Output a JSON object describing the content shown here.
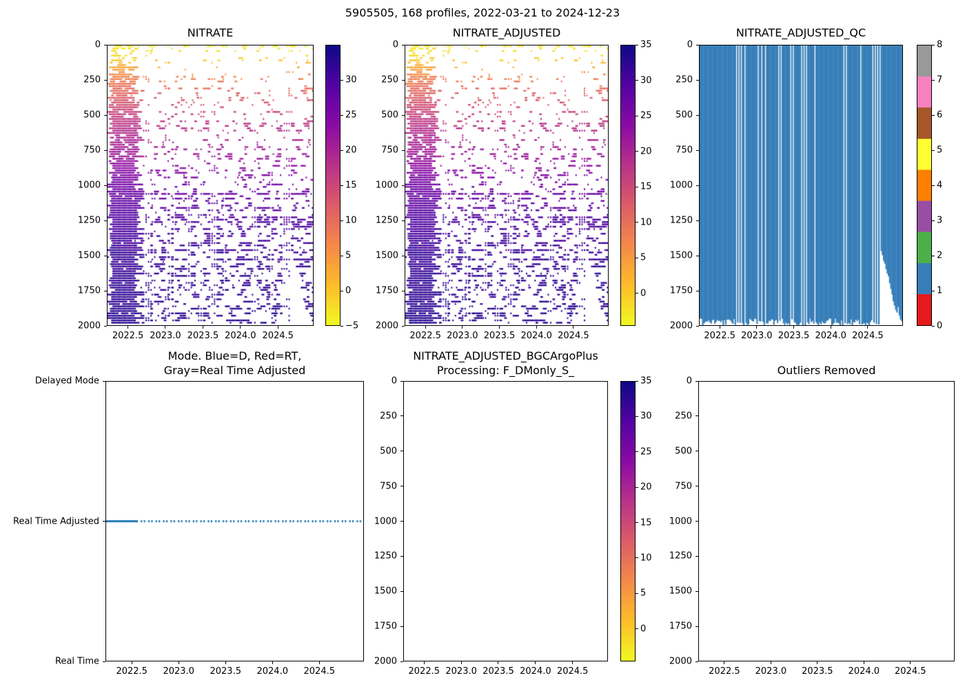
{
  "figure": {
    "suptitle": "5905505, 168 profiles, 2022-03-21 to 2024-12-23",
    "background": "#ffffff",
    "n_profiles": 168,
    "date_start": "2022-03-21",
    "date_end": "2024-12-23"
  },
  "colors": {
    "mode_line": "#1f77b4",
    "qc_fill": "#377eb8",
    "axis": "#000000",
    "plasma_r_top_to_bottom": [
      "#0d0887",
      "#5302a3",
      "#8b0aa5",
      "#b83289",
      "#db5c68",
      "#f48849",
      "#febc2a",
      "#f0f921"
    ],
    "qc_palette_0_to_8": [
      "#e41a1c",
      "#377eb8",
      "#4daf4a",
      "#984ea3",
      "#ff7f00",
      "#ffff33",
      "#a65628",
      "#f781bf",
      "#999999"
    ]
  },
  "chart_data": [
    {
      "id": "nitrate",
      "type": "heatmap",
      "title": "NITRATE",
      "x_range": [
        2022.219,
        2024.976
      ],
      "x_ticks": [
        2022.5,
        2023.0,
        2023.5,
        2024.0,
        2024.5
      ],
      "y_range": [
        0,
        2000
      ],
      "y_ticks": [
        0,
        250,
        500,
        750,
        1000,
        1250,
        1500,
        1750,
        2000
      ],
      "n_profiles": 168,
      "colorbar": {
        "colormap": "plasma_r",
        "vmin": -5,
        "vmax": 35,
        "ticks": [
          30,
          25,
          20,
          15,
          10,
          5,
          0,
          -5
        ]
      },
      "value_vs_depth": [
        [
          0,
          -4
        ],
        [
          100,
          -1
        ],
        [
          200,
          6
        ],
        [
          300,
          10
        ],
        [
          400,
          13
        ],
        [
          500,
          16
        ],
        [
          600,
          18
        ],
        [
          800,
          21.5
        ],
        [
          1000,
          26
        ],
        [
          1200,
          29
        ],
        [
          1500,
          31.5
        ],
        [
          2000,
          33
        ]
      ],
      "density_vs_depth": [
        [
          0,
          0.42
        ],
        [
          60,
          0.15
        ],
        [
          150,
          0.18
        ],
        [
          300,
          0.24
        ],
        [
          600,
          0.28
        ],
        [
          900,
          0.33
        ],
        [
          1100,
          0.44
        ],
        [
          2000,
          0.36
        ]
      ],
      "dense_band_until": 2022.58,
      "deep_cutoff_start": 2024.65,
      "deep_cutoff_min_depth": 1470
    },
    {
      "id": "nitrate_adjusted",
      "type": "heatmap",
      "title": "NITRATE_ADJUSTED",
      "x_range": [
        2022.219,
        2024.976
      ],
      "x_ticks": [
        2022.5,
        2023.0,
        2023.5,
        2024.0,
        2024.5
      ],
      "y_range": [
        0,
        2000
      ],
      "y_ticks": [
        0,
        250,
        500,
        750,
        1000,
        1250,
        1500,
        1750,
        2000
      ],
      "n_profiles": 168,
      "colorbar": {
        "colormap": "plasma_r",
        "vmin": -4.6,
        "vmax": 35,
        "ticks": [
          35,
          30,
          25,
          20,
          15,
          10,
          5,
          0
        ]
      },
      "value_vs_depth": [
        [
          0,
          -4
        ],
        [
          100,
          -1
        ],
        [
          200,
          6
        ],
        [
          300,
          10
        ],
        [
          400,
          13
        ],
        [
          500,
          16
        ],
        [
          600,
          18
        ],
        [
          800,
          21.5
        ],
        [
          1000,
          26
        ],
        [
          1200,
          29
        ],
        [
          1500,
          31.5
        ],
        [
          2000,
          33
        ]
      ],
      "density_vs_depth": [
        [
          0,
          0.42
        ],
        [
          60,
          0.15
        ],
        [
          150,
          0.18
        ],
        [
          300,
          0.24
        ],
        [
          600,
          0.28
        ],
        [
          900,
          0.33
        ],
        [
          1100,
          0.44
        ],
        [
          2000,
          0.36
        ]
      ],
      "dense_band_until": 2022.58,
      "deep_cutoff_start": 2024.65,
      "deep_cutoff_min_depth": 1470
    },
    {
      "id": "nitrate_adjusted_qc",
      "type": "heatmap",
      "title": "NITRATE_ADJUSTED_QC",
      "x_range": [
        2022.219,
        2024.976
      ],
      "x_ticks": [
        2022.5,
        2023.0,
        2023.5,
        2024.0,
        2024.5
      ],
      "y_range": [
        0,
        2000
      ],
      "y_ticks": [
        0,
        250,
        500,
        750,
        1000,
        1250,
        1500,
        1750,
        2000
      ],
      "dominant_qc_value": 1,
      "colorbar": {
        "colormap": "Set1-discrete",
        "ticks": [
          0,
          1,
          2,
          3,
          4,
          5,
          6,
          7,
          8
        ]
      },
      "missing_profile_indices": [
        30,
        32,
        34,
        37,
        48,
        51,
        54,
        65,
        67,
        75,
        77,
        84,
        86,
        88,
        95,
        119,
        121,
        133,
        143,
        145,
        147,
        149
      ],
      "max_depth_steps": [
        [
          150,
          1470
        ],
        [
          151,
          1500
        ],
        [
          152,
          1540
        ],
        [
          153,
          1560
        ],
        [
          154,
          1600
        ],
        [
          155,
          1630
        ],
        [
          156,
          1650
        ],
        [
          157,
          1700
        ],
        [
          158,
          1740
        ],
        [
          159,
          1780
        ],
        [
          160,
          1830
        ],
        [
          161,
          1860
        ],
        [
          162,
          1890
        ],
        [
          163,
          1910
        ],
        [
          164,
          1870
        ],
        [
          165,
          1930
        ],
        [
          166,
          1960
        ],
        [
          167,
          1990
        ]
      ]
    },
    {
      "id": "mode",
      "type": "line",
      "title_lines": [
        "Mode. Blue=D, Red=RT,",
        "Gray=Real Time Adjusted"
      ],
      "x_range": [
        2022.219,
        2024.976
      ],
      "x_ticks": [
        2022.5,
        2023.0,
        2023.5,
        2024.0,
        2024.5
      ],
      "y_categories": [
        "Delayed Mode",
        "Real Time Adjusted",
        "Real Time"
      ],
      "series": [
        {
          "name": "mode",
          "constant_category": "Real Time Adjusted",
          "color": "#1f77b4",
          "style": "solid-then-dotted",
          "solid_until": 2022.56
        }
      ]
    },
    {
      "id": "bgc_argoplus_processing",
      "type": "heatmap",
      "title_lines": [
        "NITRATE_ADJUSTED_BGCArgoPlus",
        "Processing: F_DMonly_S_"
      ],
      "empty": true,
      "x_range": [
        2022.219,
        2024.976
      ],
      "x_ticks": [
        2022.5,
        2023.0,
        2023.5,
        2024.0,
        2024.5
      ],
      "y_range": [
        0,
        2000
      ],
      "y_ticks": [
        0,
        250,
        500,
        750,
        1000,
        1250,
        1500,
        1750,
        2000
      ],
      "colorbar": {
        "colormap": "plasma_r",
        "vmin": -4.6,
        "vmax": 35,
        "ticks": [
          35,
          30,
          25,
          20,
          15,
          10,
          5,
          0
        ]
      }
    },
    {
      "id": "outliers_removed",
      "type": "heatmap",
      "title": "Outliers Removed",
      "empty": true,
      "x_range": [
        2022.219,
        2024.976
      ],
      "x_ticks": [
        2022.5,
        2023.0,
        2023.5,
        2024.0,
        2024.5
      ],
      "y_range": [
        0,
        2000
      ],
      "y_ticks": [
        0,
        250,
        500,
        750,
        1000,
        1250,
        1500,
        1750,
        2000
      ]
    }
  ]
}
